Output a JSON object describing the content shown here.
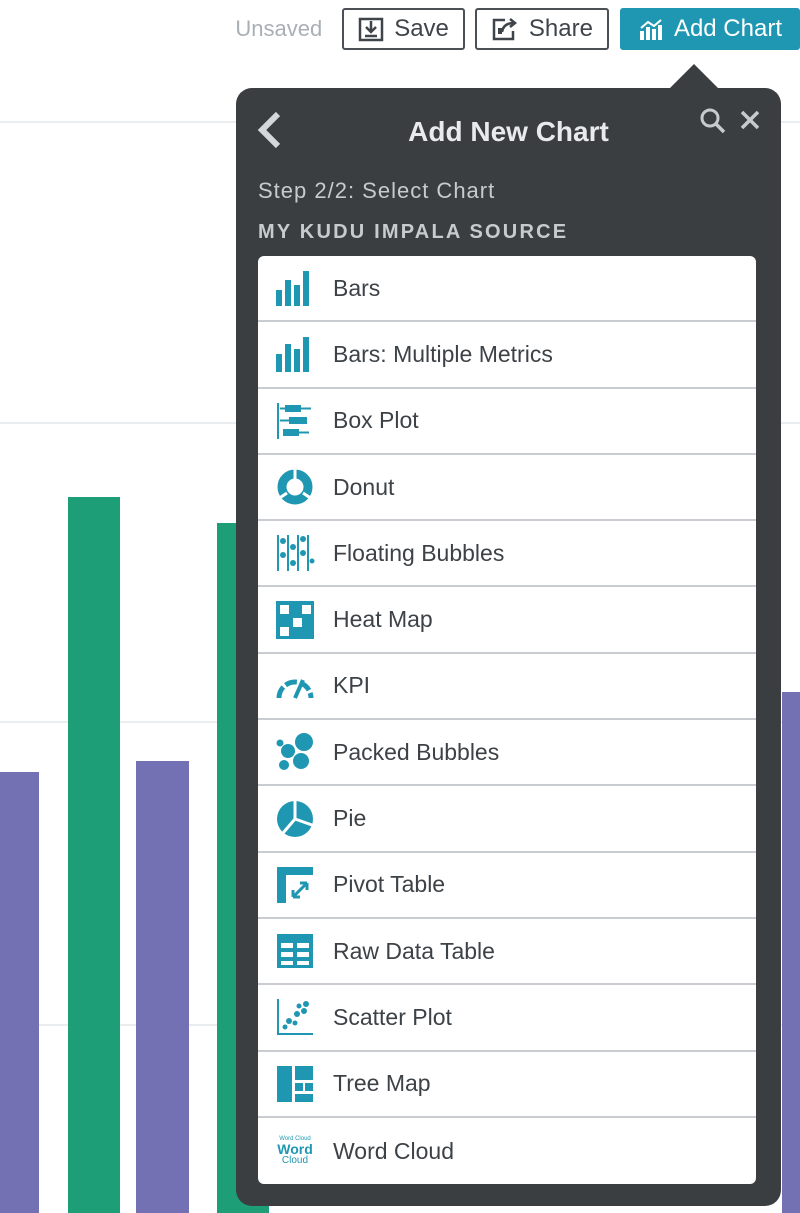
{
  "toolbar": {
    "status": "Unsaved",
    "save_label": "Save",
    "share_label": "Share",
    "add_chart_label": "Add Chart"
  },
  "panel": {
    "title": "Add New Chart",
    "step": "Step 2/2: Select Chart",
    "source": "MY KUDU IMPALA SOURCE",
    "items": [
      {
        "label": "Bars",
        "icon": "bars-icon"
      },
      {
        "label": "Bars: Multiple Metrics",
        "icon": "bars-multiple-icon"
      },
      {
        "label": "Box Plot",
        "icon": "box-plot-icon"
      },
      {
        "label": "Donut",
        "icon": "donut-icon"
      },
      {
        "label": "Floating Bubbles",
        "icon": "floating-bubbles-icon"
      },
      {
        "label": "Heat Map",
        "icon": "heat-map-icon"
      },
      {
        "label": "KPI",
        "icon": "kpi-gauge-icon"
      },
      {
        "label": "Packed Bubbles",
        "icon": "packed-bubbles-icon"
      },
      {
        "label": "Pie",
        "icon": "pie-icon"
      },
      {
        "label": "Pivot Table",
        "icon": "pivot-table-icon"
      },
      {
        "label": "Raw Data Table",
        "icon": "raw-data-table-icon"
      },
      {
        "label": "Scatter Plot",
        "icon": "scatter-plot-icon"
      },
      {
        "label": "Tree Map",
        "icon": "tree-map-icon"
      },
      {
        "label": "Word Cloud",
        "icon": "word-cloud-icon"
      }
    ],
    "word_cloud_icon_text": [
      "Word Cloud",
      "Word",
      "Cloud"
    ]
  },
  "colors": {
    "accent": "#1f97b2",
    "panel_bg": "#3b3e41",
    "bar_green": "#1e9e76",
    "bar_purple": "#7470b4"
  }
}
